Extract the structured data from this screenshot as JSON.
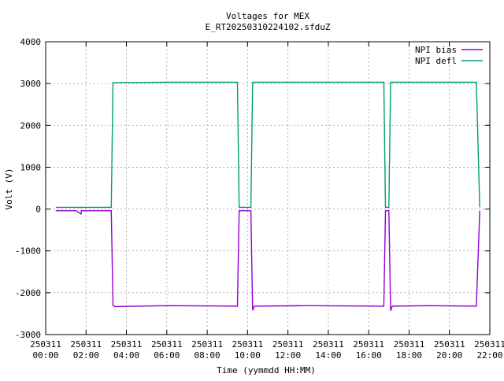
{
  "chart_data": {
    "type": "line",
    "title": "Voltages for MEX",
    "subtitle": "E_RT20250310224102.sfduZ",
    "xlabel": "Time (yymmdd HH:MM)",
    "ylabel": "Volt (V)",
    "xlim": [
      "250311 00:00",
      "250311 22:00"
    ],
    "ylim": [
      -3000,
      4000
    ],
    "grid": true,
    "legend_position": "top-right",
    "x_ticks": [
      {
        "date": "250311",
        "time": "00:00"
      },
      {
        "date": "250311",
        "time": "02:00"
      },
      {
        "date": "250311",
        "time": "04:00"
      },
      {
        "date": "250311",
        "time": "06:00"
      },
      {
        "date": "250311",
        "time": "08:00"
      },
      {
        "date": "250311",
        "time": "10:00"
      },
      {
        "date": "250311",
        "time": "12:00"
      },
      {
        "date": "250311",
        "time": "14:00"
      },
      {
        "date": "250311",
        "time": "16:00"
      },
      {
        "date": "250311",
        "time": "18:00"
      },
      {
        "date": "250311",
        "time": "20:00"
      },
      {
        "date": "250311",
        "time": "22:00"
      }
    ],
    "y_ticks": [
      4000,
      3000,
      2000,
      1000,
      0,
      -1000,
      -2000,
      -3000
    ],
    "series": [
      {
        "name": "NPI bias",
        "color": "#9400d3",
        "points": [
          [
            "250311 00:30",
            -40
          ],
          [
            "250311 01:30",
            -40
          ],
          [
            "250311 01:45",
            -120
          ],
          [
            "250311 01:46",
            -40
          ],
          [
            "250311 03:15",
            -40
          ],
          [
            "250311 03:20",
            -2300
          ],
          [
            "250311 03:25",
            -2330
          ],
          [
            "250311 06:00",
            -2310
          ],
          [
            "250311 09:30",
            -2320
          ],
          [
            "250311 09:35",
            -40
          ],
          [
            "250311 10:10",
            -40
          ],
          [
            "250311 10:15",
            -2420
          ],
          [
            "250311 10:20",
            -2320
          ],
          [
            "250311 13:00",
            -2310
          ],
          [
            "250311 16:45",
            -2320
          ],
          [
            "250311 16:50",
            -40
          ],
          [
            "250311 17:00",
            -40
          ],
          [
            "250311 17:05",
            -2430
          ],
          [
            "250311 17:10",
            -2320
          ],
          [
            "250311 19:00",
            -2310
          ],
          [
            "250311 21:20",
            -2320
          ],
          [
            "250311 21:30",
            -40
          ]
        ]
      },
      {
        "name": "NPI defl",
        "color": "#009e73",
        "points": [
          [
            "250311 00:30",
            40
          ],
          [
            "250311 03:15",
            40
          ],
          [
            "250311 03:20",
            3020
          ],
          [
            "250311 06:00",
            3030
          ],
          [
            "250311 09:30",
            3030
          ],
          [
            "250311 09:35",
            40
          ],
          [
            "250311 10:10",
            40
          ],
          [
            "250311 10:15",
            3030
          ],
          [
            "250311 13:00",
            3030
          ],
          [
            "250311 16:00",
            3030
          ],
          [
            "250311 16:45",
            3030
          ],
          [
            "250311 16:50",
            40
          ],
          [
            "250311 17:00",
            40
          ],
          [
            "250311 17:05",
            3030
          ],
          [
            "250311 19:00",
            3030
          ],
          [
            "250311 21:20",
            3030
          ],
          [
            "250311 21:30",
            40
          ]
        ]
      }
    ]
  }
}
